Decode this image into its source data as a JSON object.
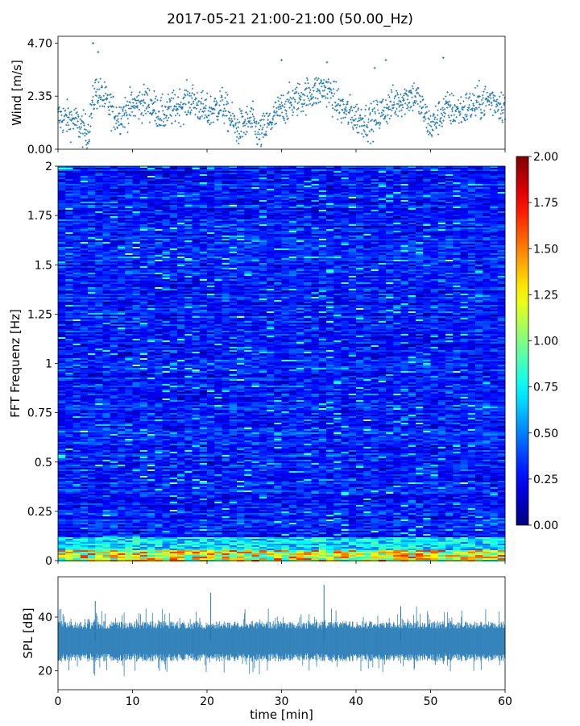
{
  "title": "2017-05-21 21:00-21:00 (50.00_Hz)",
  "chart_data": [
    {
      "type": "scatter",
      "panel": "wind",
      "ylabel": "Wind [m/s]",
      "ylim": [
        0,
        5.0
      ],
      "yticks": [
        0.0,
        2.35,
        4.7
      ],
      "ytick_labels": [
        "0.00",
        "2.35",
        "4.70"
      ],
      "xlim": [
        0,
        60
      ],
      "marker_color": "#1f77b4",
      "x_min": [
        0,
        2,
        4,
        5,
        6,
        8,
        10,
        12,
        14,
        16,
        18,
        20,
        22,
        24,
        26,
        27,
        28,
        30,
        32,
        34,
        36,
        38,
        40,
        42,
        44,
        46,
        48,
        50,
        52,
        54,
        56,
        58,
        60
      ],
      "y_mean": [
        1.4,
        1.3,
        0.7,
        2.6,
        2.3,
        1.4,
        1.9,
        2.1,
        1.5,
        1.9,
        2.2,
        1.6,
        2.0,
        0.9,
        1.3,
        0.6,
        1.0,
        1.8,
        2.2,
        2.5,
        2.7,
        1.8,
        1.4,
        1.2,
        1.8,
        2.2,
        2.4,
        1.0,
        1.8,
        1.7,
        2.0,
        2.2,
        1.9
      ],
      "outliers": [
        [
          4.7,
          4.7
        ],
        [
          5.4,
          4.3
        ],
        [
          30.0,
          3.95
        ],
        [
          36.1,
          3.85
        ],
        [
          42.5,
          3.6
        ],
        [
          44.0,
          3.95
        ],
        [
          51.7,
          4.05
        ]
      ]
    },
    {
      "type": "heatmap",
      "panel": "spectrogram",
      "ylabel": "FFT Frequenz [Hz]",
      "ylim": [
        0,
        2
      ],
      "yticks": [
        0,
        0.25,
        0.5,
        0.75,
        1,
        1.25,
        1.5,
        1.75,
        2
      ],
      "ytick_labels": [
        "0",
        "0.25",
        "0.5",
        "0.75",
        "1",
        "1.25",
        "1.5",
        "1.75",
        "2"
      ],
      "xlim": [
        0,
        60
      ],
      "colormap": "jet",
      "colorbar": {
        "range": [
          0,
          2
        ],
        "ticks": [
          0,
          0.25,
          0.5,
          0.75,
          1.0,
          1.25,
          1.5,
          1.75,
          2.0
        ],
        "tick_labels": [
          "0.00",
          "0.25",
          "0.50",
          "0.75",
          "1.00",
          "1.25",
          "1.50",
          "1.75",
          "2.00"
        ]
      },
      "typical_level": 0.3,
      "low_freq_band": {
        "max_hz": 0.05,
        "level": 1.3
      }
    },
    {
      "type": "area",
      "panel": "spl",
      "ylabel": "SPL [dB]",
      "ylim": [
        13,
        55
      ],
      "yticks": [
        20,
        40
      ],
      "ytick_labels": [
        "20",
        "40"
      ],
      "xlim": [
        0,
        60
      ],
      "xticks": [
        0,
        10,
        20,
        30,
        40,
        50,
        60
      ],
      "xtick_labels": [
        "0",
        "10",
        "20",
        "30",
        "40",
        "50",
        "60"
      ],
      "xlabel": "time [min]",
      "fill_color": "#1f77b4",
      "band_center": 31,
      "band_halfwidth": 6,
      "spikes": [
        [
          5.0,
          46
        ],
        [
          20.5,
          49
        ],
        [
          35.7,
          52
        ],
        [
          46.0,
          44
        ]
      ]
    }
  ]
}
